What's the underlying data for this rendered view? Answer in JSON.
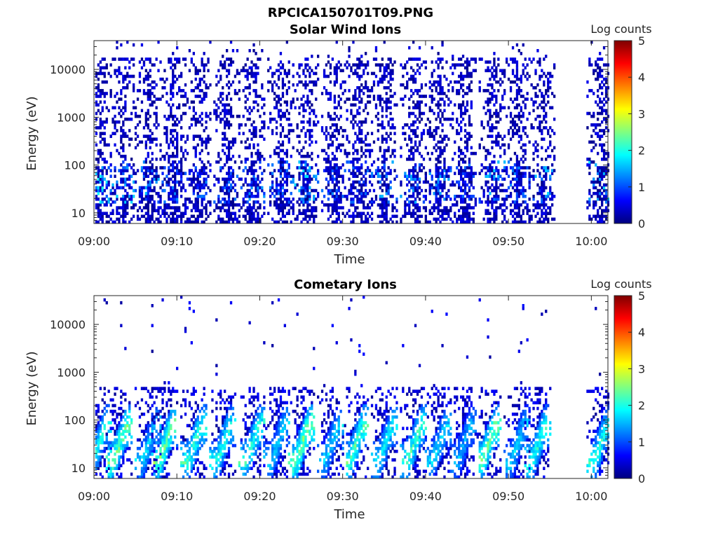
{
  "figure_title": "RPCICA150701T09.PNG",
  "colormap": [
    "#00007f",
    "#0000ff",
    "#0080ff",
    "#00ffff",
    "#80ff80",
    "#ffff00",
    "#ff8000",
    "#ff0000",
    "#7f0000"
  ],
  "chart_data": [
    {
      "type": "heatmap",
      "title": "Solar Wind Ions",
      "xlabel": "Time",
      "ylabel": "Energy (eV)",
      "x_ticks": [
        "09:00",
        "09:10",
        "09:20",
        "09:30",
        "09:40",
        "09:50",
        "10:00"
      ],
      "x_range_minutes": [
        0,
        62
      ],
      "y_scale": "log",
      "y_range": [
        6,
        40000
      ],
      "y_ticks": [
        "10",
        "100",
        "1000",
        "10000"
      ],
      "colorbar": {
        "label": "Log counts",
        "range": [
          0,
          5
        ],
        "ticks": [
          "0",
          "1",
          "2",
          "3",
          "4",
          "5"
        ]
      },
      "bursts": [
        {
          "t": 0.5,
          "peak": 2.0
        },
        {
          "t": 3.5,
          "peak": 1.7
        },
        {
          "t": 6.5,
          "peak": 1.6
        },
        {
          "t": 9.5,
          "peak": 1.3
        },
        {
          "t": 12.5,
          "peak": 1.3
        },
        {
          "t": 16.0,
          "peak": 1.2
        },
        {
          "t": 19.0,
          "peak": 1.4
        },
        {
          "t": 22.5,
          "peak": 1.3
        },
        {
          "t": 25.5,
          "peak": 1.8
        },
        {
          "t": 29.0,
          "peak": 1.3
        },
        {
          "t": 32.0,
          "peak": 1.2
        },
        {
          "t": 35.0,
          "peak": 1.6
        },
        {
          "t": 38.5,
          "peak": 1.5
        },
        {
          "t": 41.5,
          "peak": 1.5
        },
        {
          "t": 44.5,
          "peak": 1.2
        },
        {
          "t": 48.0,
          "peak": 1.7
        },
        {
          "t": 51.0,
          "peak": 1.3
        },
        {
          "t": 54.0,
          "peak": 1.7
        },
        {
          "t": 61.0,
          "peak": 1.8
        }
      ]
    },
    {
      "type": "heatmap",
      "title": "Cometary Ions",
      "xlabel": "Time",
      "ylabel": "Energy (eV)",
      "x_ticks": [
        "09:00",
        "09:10",
        "09:20",
        "09:30",
        "09:40",
        "09:50",
        "10:00"
      ],
      "x_range_minutes": [
        0,
        62
      ],
      "y_scale": "log",
      "y_range": [
        6,
        40000
      ],
      "y_ticks": [
        "10",
        "100",
        "1000",
        "10000"
      ],
      "colorbar": {
        "label": "Log counts",
        "range": [
          0,
          5
        ],
        "ticks": [
          "0",
          "1",
          "2",
          "3",
          "4",
          "5"
        ]
      },
      "bursts": [
        {
          "t": 0.5,
          "peak": 2.3
        },
        {
          "t": 3.0,
          "peak": 2.8
        },
        {
          "t": 6.5,
          "peak": 2.0
        },
        {
          "t": 8.5,
          "peak": 2.8
        },
        {
          "t": 12.0,
          "peak": 2.5
        },
        {
          "t": 15.5,
          "peak": 2.3
        },
        {
          "t": 19.0,
          "peak": 2.5
        },
        {
          "t": 22.0,
          "peak": 2.0
        },
        {
          "t": 25.0,
          "peak": 2.9
        },
        {
          "t": 28.5,
          "peak": 2.0
        },
        {
          "t": 31.5,
          "peak": 2.6
        },
        {
          "t": 35.0,
          "peak": 2.2
        },
        {
          "t": 38.5,
          "peak": 2.5
        },
        {
          "t": 41.5,
          "peak": 2.0
        },
        {
          "t": 44.5,
          "peak": 1.8
        },
        {
          "t": 47.5,
          "peak": 2.9
        },
        {
          "t": 51.0,
          "peak": 2.0
        },
        {
          "t": 53.5,
          "peak": 2.4
        },
        {
          "t": 61.0,
          "peak": 2.4
        }
      ]
    }
  ]
}
